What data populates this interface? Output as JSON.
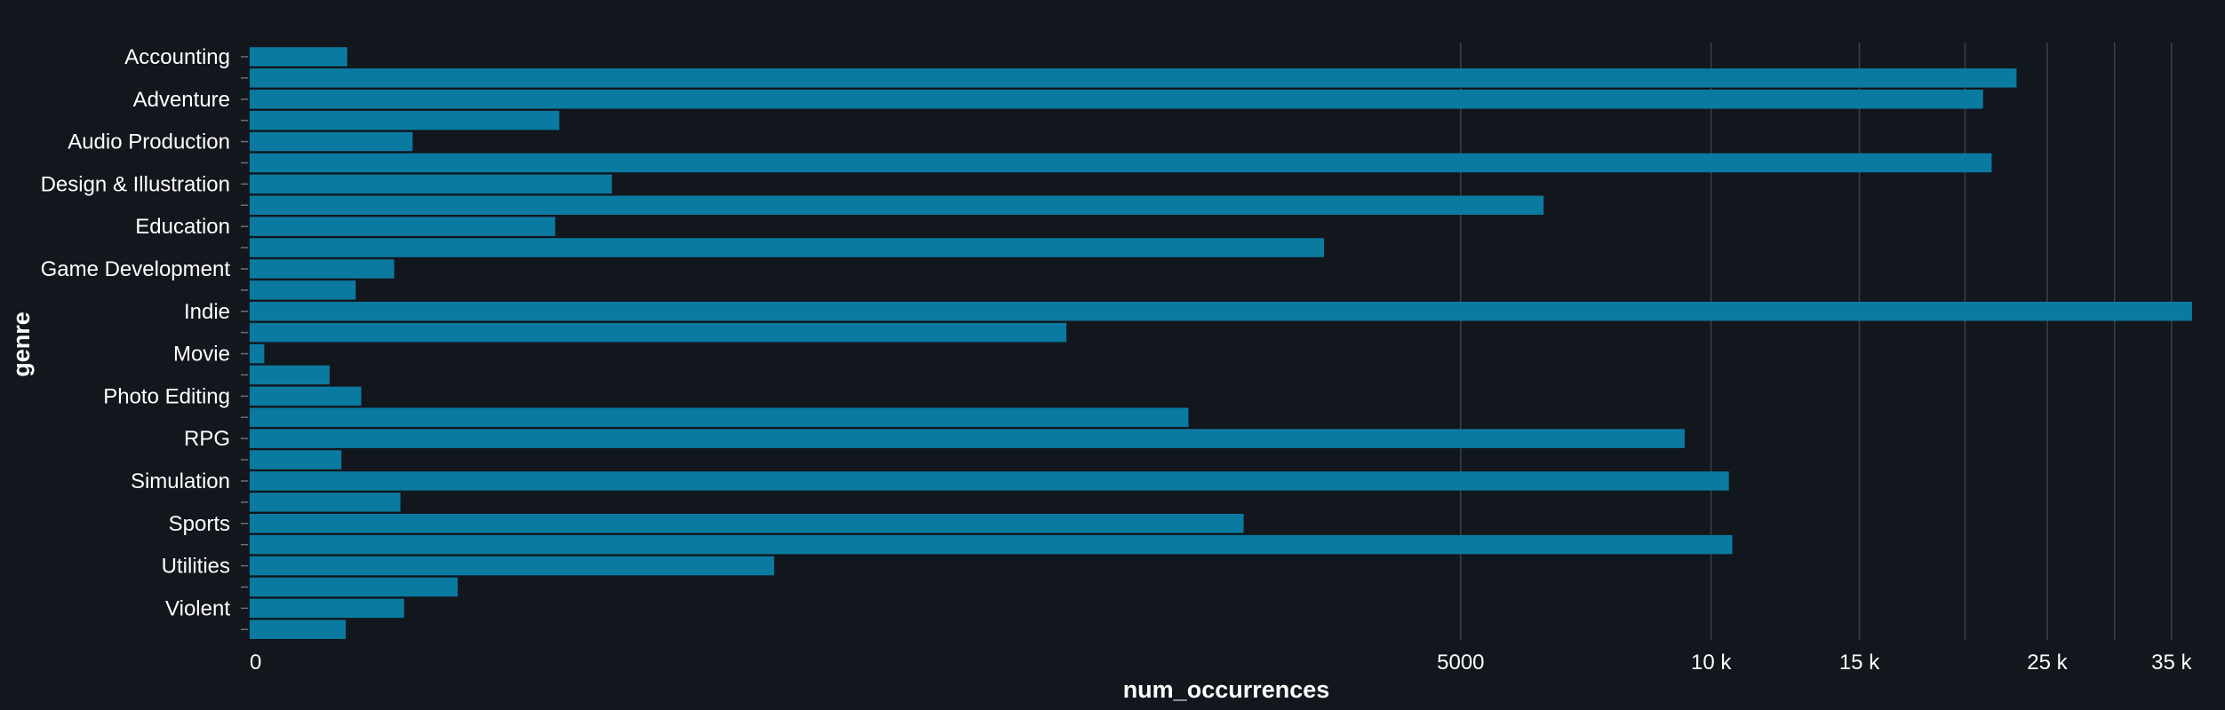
{
  "chart_data": {
    "type": "bar",
    "orientation": "horizontal",
    "title": "",
    "xlabel": "num_occurrences",
    "ylabel": "genre",
    "x_scale": "symlog",
    "xlim": [
      0,
      38000
    ],
    "x_ticks": [
      0,
      5000,
      10000,
      15000,
      25000,
      35000
    ],
    "x_tick_labels": [
      "0",
      "5000",
      "10 k",
      "15 k",
      "25 k",
      "35 k"
    ],
    "x_gridlines": [
      5000,
      10000,
      15000,
      20000,
      25000,
      30000,
      35000
    ],
    "grid": "vertical",
    "legend": "none",
    "bar_color": "#0b7aa1",
    "categories": [
      "Accounting",
      "",
      "Adventure",
      "",
      "Audio Production",
      "",
      "Design & Illustration",
      "",
      "Education",
      "",
      "Game Development",
      "",
      "Indie",
      "",
      "Movie",
      "",
      "Photo Editing",
      "",
      "RPG",
      "",
      "Simulation",
      "",
      "Sports",
      "",
      "Utilities",
      "",
      "Violent",
      ""
    ],
    "values": [
      60,
      23000,
      21000,
      260,
      110,
      21500,
      330,
      6300,
      255,
      3400,
      95,
      66,
      37000,
      1600,
      8,
      48,
      70,
      2300,
      9300,
      56,
      10500,
      100,
      2700,
      10600,
      620,
      150,
      103,
      59
    ]
  },
  "colors": {
    "background": "#12161d",
    "bar": "#0b7aa1",
    "grid": "#3a4048",
    "text": "#ffffff"
  }
}
